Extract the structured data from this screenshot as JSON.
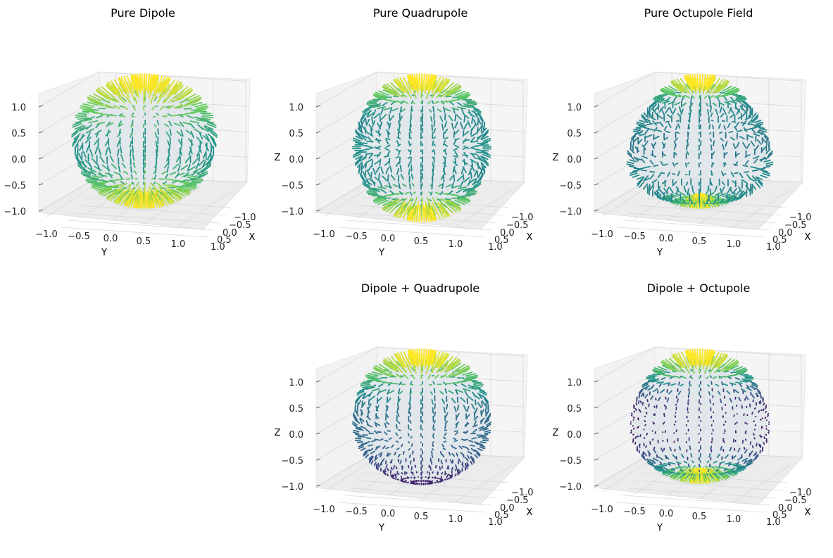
{
  "figure": {
    "colormap": "viridis",
    "colormap_stops": [
      "#440154",
      "#3b528b",
      "#21918c",
      "#5ec962",
      "#fde725"
    ]
  },
  "chart_data": [
    {
      "type": "quiver3d",
      "title": "Pure Dipole",
      "field": "dipole",
      "xlabel": "X",
      "ylabel": "Y",
      "zlabel": "",
      "xlim": [
        -1.2,
        1.2
      ],
      "ylim": [
        -1.2,
        1.2
      ],
      "zlim": [
        -1.2,
        1.2
      ],
      "xticks": [
        "−1.0",
        "−0.5",
        "0.0",
        "0.5",
        "1.0"
      ],
      "yticks": [
        "−1.0",
        "−0.5",
        "0.0",
        "0.5",
        "1.0"
      ],
      "zticks": [
        "−1.0",
        "−0.5",
        "0.0",
        "0.5",
        "1.0"
      ],
      "grid": true
    },
    {
      "type": "quiver3d",
      "title": "Pure Quadrupole",
      "field": "quadrupole",
      "xlabel": "X",
      "ylabel": "Y",
      "zlabel": "Z",
      "xlim": [
        -1.2,
        1.2
      ],
      "ylim": [
        -1.2,
        1.2
      ],
      "zlim": [
        -1.2,
        1.2
      ],
      "xticks": [
        "−1.0",
        "−0.5",
        "0.0",
        "0.5",
        "1.0"
      ],
      "yticks": [
        "−1.0",
        "−0.5",
        "0.0",
        "0.5",
        "1.0"
      ],
      "zticks": [
        "−1.0",
        "−0.5",
        "0.0",
        "0.5",
        "1.0"
      ],
      "grid": true
    },
    {
      "type": "quiver3d",
      "title": "Pure Octupole Field",
      "field": "octupole",
      "xlabel": "X",
      "ylabel": "Y",
      "zlabel": "Z",
      "xlim": [
        -1.2,
        1.2
      ],
      "ylim": [
        -1.2,
        1.2
      ],
      "zlim": [
        -1.2,
        1.2
      ],
      "xticks": [
        "−1.0",
        "−0.5",
        "0.0",
        "0.5",
        "1.0"
      ],
      "yticks": [
        "−1.0",
        "−0.5",
        "0.0",
        "0.5",
        "1.0"
      ],
      "zticks": [
        "−1.0",
        "−0.5",
        "0.0",
        "0.5",
        "1.0"
      ],
      "grid": true
    },
    {
      "type": "quiver3d",
      "title": "Dipole + Quadrupole",
      "field": "dipole+quadrupole",
      "xlabel": "X",
      "ylabel": "Y",
      "zlabel": "Z",
      "xlim": [
        -1.2,
        1.2
      ],
      "ylim": [
        -1.2,
        1.2
      ],
      "zlim": [
        -1.2,
        1.2
      ],
      "xticks": [
        "−1.0",
        "−0.5",
        "0.0",
        "0.5",
        "1.0"
      ],
      "yticks": [
        "−1.0",
        "−0.5",
        "0.0",
        "0.5",
        "1.0"
      ],
      "zticks": [
        "−1.0",
        "−0.5",
        "0.0",
        "0.5",
        "1.0"
      ],
      "grid": true
    },
    {
      "type": "quiver3d",
      "title": "Dipole + Octupole",
      "field": "dipole+octupole",
      "xlabel": "X",
      "ylabel": "Y",
      "zlabel": "Z",
      "xlim": [
        -1.2,
        1.2
      ],
      "ylim": [
        -1.2,
        1.2
      ],
      "zlim": [
        -1.2,
        1.2
      ],
      "xticks": [
        "−1.0",
        "−0.5",
        "0.0",
        "0.5",
        "1.0"
      ],
      "yticks": [
        "−1.0",
        "−0.5",
        "0.0",
        "0.5",
        "1.0"
      ],
      "zticks": [
        "−1.0",
        "−0.5",
        "0.0",
        "0.5",
        "1.0"
      ],
      "grid": true
    }
  ]
}
